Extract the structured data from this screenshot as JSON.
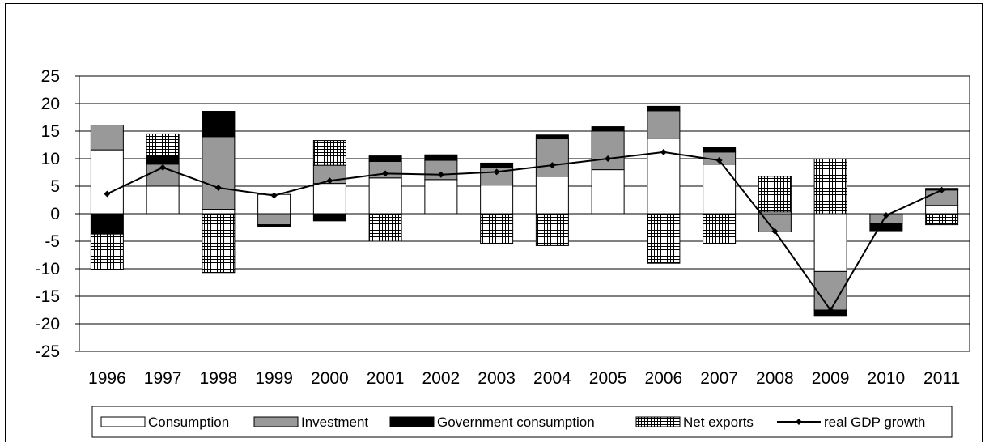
{
  "chart_data": {
    "type": "bar",
    "stacked": true,
    "categories": [
      "1996",
      "1997",
      "1998",
      "1999",
      "2000",
      "2001",
      "2002",
      "2003",
      "2004",
      "2005",
      "2006",
      "2007",
      "2008",
      "2009",
      "2010",
      "2011"
    ],
    "series": [
      {
        "name": "Consumption",
        "kind": "bar",
        "fill": "#ffffff",
        "values": [
          11.6,
          5.0,
          0.8,
          3.5,
          5.5,
          6.5,
          6.2,
          5.2,
          6.8,
          8.0,
          13.7,
          9.0,
          0.3,
          -10.5,
          0.0,
          1.5
        ]
      },
      {
        "name": "Investment",
        "kind": "bar",
        "fill": "#999999",
        "values": [
          4.5,
          4.0,
          13.2,
          -2.0,
          3.3,
          3.0,
          3.5,
          3.2,
          6.8,
          7.0,
          5.0,
          2.2,
          -3.3,
          -7.0,
          -1.8,
          2.8
        ]
      },
      {
        "name": "Government consumption",
        "kind": "bar",
        "fill": "#000000",
        "values": [
          -3.7,
          1.5,
          4.6,
          -0.3,
          -1.3,
          1.0,
          1.0,
          0.8,
          0.7,
          0.8,
          0.8,
          0.8,
          0.0,
          -1.0,
          -1.3,
          0.3
        ]
      },
      {
        "name": "Net exports",
        "kind": "bar",
        "fill": "hatch",
        "values": [
          -6.5,
          4.0,
          -10.7,
          0.0,
          4.5,
          -5.0,
          0.0,
          -5.5,
          -5.8,
          0.0,
          -9.0,
          -5.5,
          6.5,
          10.0,
          0.0,
          -2.0
        ]
      },
      {
        "name": "real GDP growth",
        "kind": "line",
        "color": "#000000",
        "values": [
          3.6,
          8.4,
          4.7,
          3.3,
          6.0,
          7.3,
          7.1,
          7.6,
          8.8,
          10.0,
          11.2,
          9.7,
          -3.2,
          -17.5,
          -0.3,
          4.3
        ]
      }
    ],
    "xlabel": "",
    "ylabel": "",
    "ylim": [
      -25,
      25
    ],
    "yticks": [
      "25",
      "20",
      "15",
      "10",
      "5",
      "0",
      "-5",
      "-10",
      "-15",
      "-20",
      "-25"
    ],
    "grid": true,
    "legend": "bottom"
  }
}
